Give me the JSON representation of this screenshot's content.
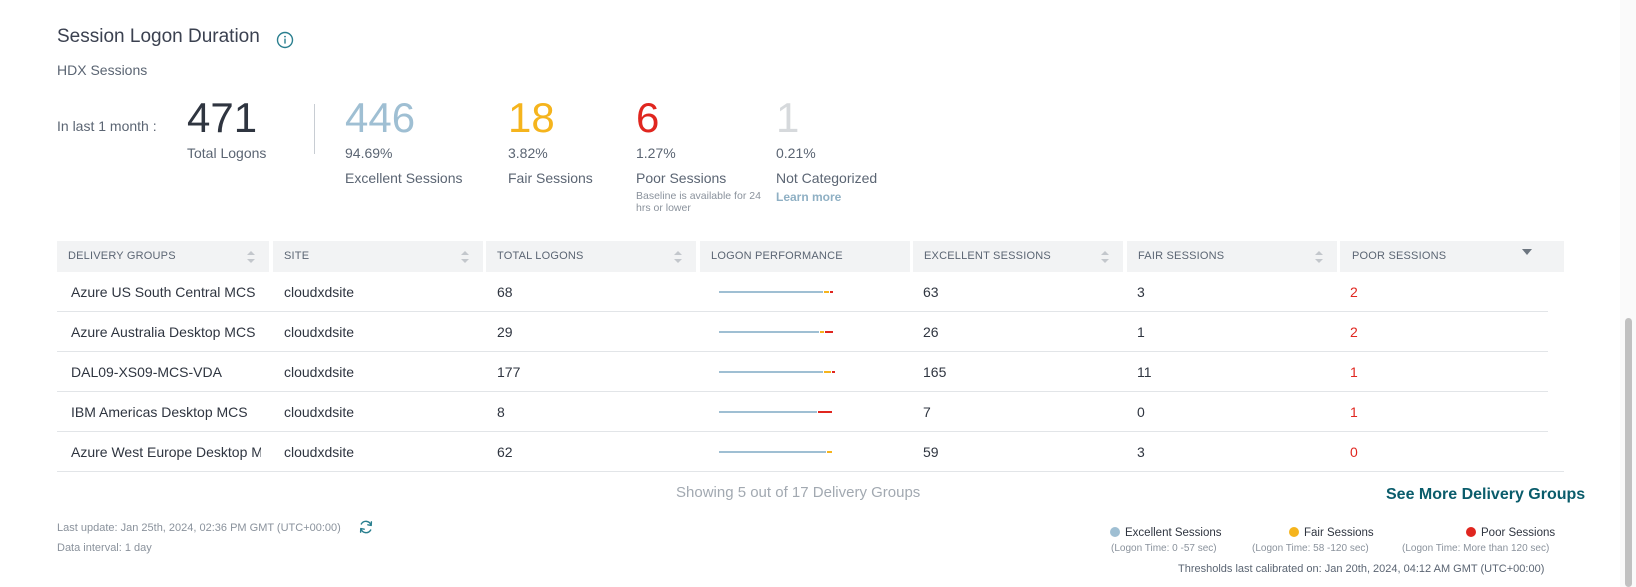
{
  "header": {
    "title": "Session Logon Duration",
    "subtitle": "HDX Sessions"
  },
  "summary": {
    "period_label": "In last 1 month :",
    "total": {
      "value": "471",
      "label": "Total Logons"
    },
    "excellent": {
      "value": "446",
      "percent": "94.69%",
      "label": "Excellent Sessions"
    },
    "fair": {
      "value": "18",
      "percent": "3.82%",
      "label": "Fair Sessions"
    },
    "poor": {
      "value": "6",
      "percent": "1.27%",
      "label": "Poor Sessions",
      "note": "Baseline is available for 24 hrs or lower"
    },
    "not_categorized": {
      "value": "1",
      "percent": "0.21%",
      "label": "Not Categorized",
      "link": "Learn more"
    }
  },
  "table": {
    "columns": [
      "DELIVERY GROUPS",
      "SITE",
      "TOTAL LOGONS",
      "LOGON PERFORMANCE",
      "EXCELLENT SESSIONS",
      "FAIR SESSIONS",
      "POOR SESSIONS"
    ],
    "rows": [
      {
        "group": "Azure US South Central MCS",
        "site": "cloudxdsite",
        "total": "68",
        "excellent": "63",
        "fair": "3",
        "poor": "2",
        "perf": {
          "excellent": 63,
          "fair": 3,
          "poor": 2
        }
      },
      {
        "group": "Azure Australia Desktop MCS",
        "site": "cloudxdsite",
        "total": "29",
        "excellent": "26",
        "fair": "1",
        "poor": "2",
        "perf": {
          "excellent": 26,
          "fair": 1,
          "poor": 2
        }
      },
      {
        "group": "DAL09-XS09-MCS-VDA",
        "site": "cloudxdsite",
        "total": "177",
        "excellent": "165",
        "fair": "11",
        "poor": "1",
        "perf": {
          "excellent": 165,
          "fair": 11,
          "poor": 1
        }
      },
      {
        "group": "IBM Americas Desktop MCS",
        "site": "cloudxdsite",
        "total": "8",
        "excellent": "7",
        "fair": "0",
        "poor": "1",
        "perf": {
          "excellent": 7,
          "fair": 0,
          "poor": 1
        }
      },
      {
        "group": "Azure West Europe Desktop MC",
        "site": "cloudxdsite",
        "total": "62",
        "excellent": "59",
        "fair": "3",
        "poor": "0",
        "perf": {
          "excellent": 59,
          "fair": 3,
          "poor": 0
        }
      }
    ]
  },
  "footer": {
    "showing": "Showing 5 out of 17 Delivery Groups",
    "see_more": "See More Delivery Groups",
    "last_update": "Last update: Jan 25th, 2024, 02:36 PM GMT (UTC+00:00)",
    "interval": "Data interval: 1 day",
    "thresholds": "Thresholds last calibrated on: Jan 20th, 2024, 04:12 AM GMT (UTC+00:00)"
  },
  "legend": {
    "excellent": {
      "label": "Excellent Sessions",
      "sub": "(Logon Time:  0 -57 sec)"
    },
    "fair": {
      "label": "Fair Sessions",
      "sub": "(Logon Time:  58 -120 sec)"
    },
    "poor": {
      "label": "Poor Sessions",
      "sub": "(Logon Time:  More than 120 sec)"
    }
  },
  "colors": {
    "excellent": "#9fbfd3",
    "fair": "#f5b41d",
    "poor": "#e0261f",
    "not_categorized": "#d6d9dc",
    "accent": "#0a5c6b"
  },
  "icons": {
    "info": "info-icon",
    "refresh": "refresh-icon",
    "sort": "sort-icon",
    "sort_desc": "sort-desc-icon"
  }
}
